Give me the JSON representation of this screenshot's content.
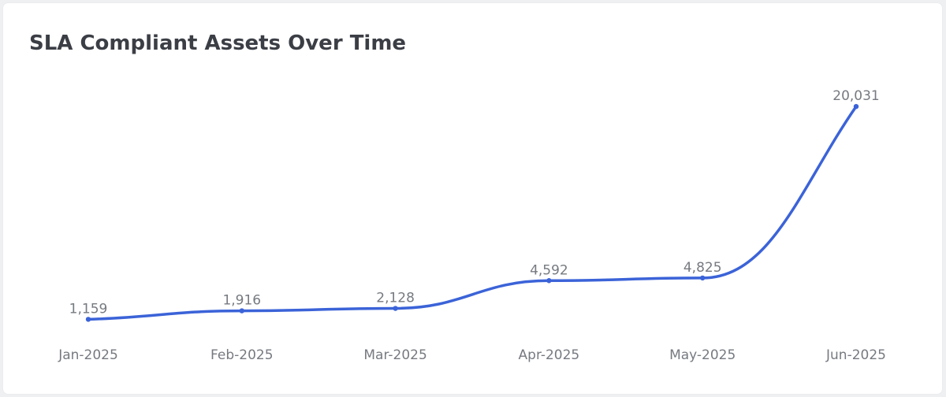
{
  "chart_data": {
    "type": "line",
    "title": "SLA Compliant Assets Over Time",
    "xlabel": "",
    "ylabel": "",
    "categories": [
      "Jan-2025",
      "Feb-2025",
      "Mar-2025",
      "Apr-2025",
      "May-2025",
      "Jun-2025"
    ],
    "series": [
      {
        "values": [
          1159,
          1916,
          2128,
          4592,
          4825,
          20031
        ],
        "data_labels": [
          "1,159",
          "1,916",
          "2,128",
          "4,592",
          "4,825",
          "20,031"
        ]
      }
    ],
    "ylim": [
      0,
      22000
    ],
    "grid": false,
    "legend": "none",
    "smooth": true,
    "line_color": "#3b63d8",
    "label_color": "#767a80"
  }
}
